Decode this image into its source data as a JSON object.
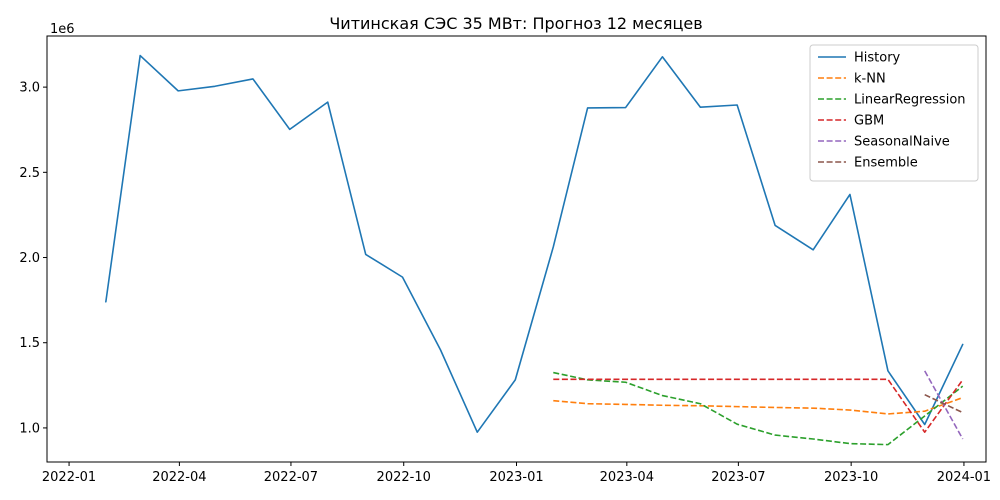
{
  "chart_data": {
    "type": "line",
    "title": "Читинская СЭС 35 МВт: Прогноз 12 месяцев",
    "xlabel": "",
    "ylabel": "",
    "y_offset_label": "1e6",
    "x_ticks": [
      {
        "date": "2022-01-01",
        "label": "2022-01"
      },
      {
        "date": "2022-04-01",
        "label": "2022-04"
      },
      {
        "date": "2022-07-01",
        "label": "2022-07"
      },
      {
        "date": "2022-10-01",
        "label": "2022-10"
      },
      {
        "date": "2023-01-01",
        "label": "2023-01"
      },
      {
        "date": "2023-04-01",
        "label": "2023-04"
      },
      {
        "date": "2023-07-01",
        "label": "2023-07"
      },
      {
        "date": "2023-10-01",
        "label": "2023-10"
      },
      {
        "date": "2024-01-01",
        "label": "2024-01"
      }
    ],
    "y_ticks": [
      {
        "value": 1000000,
        "label": "1.0"
      },
      {
        "value": 1500000,
        "label": "1.5"
      },
      {
        "value": 2000000,
        "label": "2.0"
      },
      {
        "value": 2500000,
        "label": "2.5"
      },
      {
        "value": 3000000,
        "label": "3.0"
      }
    ],
    "xlim": [
      "2021-12-14",
      "2024-01-19"
    ],
    "ylim": [
      800000,
      3300000
    ],
    "grid": false,
    "legend_position": "top-right",
    "series": [
      {
        "name": "History",
        "color": "#1f77b4",
        "dash": "solid",
        "points": [
          [
            "2022-01-31",
            1740000
          ],
          [
            "2022-02-28",
            3185000
          ],
          [
            "2022-03-31",
            2978000
          ],
          [
            "2022-04-30",
            3005000
          ],
          [
            "2022-05-31",
            3048000
          ],
          [
            "2022-06-30",
            2752000
          ],
          [
            "2022-07-31",
            2912000
          ],
          [
            "2022-08-31",
            2018000
          ],
          [
            "2022-09-30",
            1885000
          ],
          [
            "2022-10-31",
            1458000
          ],
          [
            "2022-11-30",
            975000
          ],
          [
            "2022-12-31",
            1282000
          ],
          [
            "2023-01-31",
            2062000
          ],
          [
            "2023-02-28",
            2878000
          ],
          [
            "2023-03-31",
            2880000
          ],
          [
            "2023-04-30",
            3178000
          ],
          [
            "2023-05-31",
            2882000
          ],
          [
            "2023-06-30",
            2895000
          ],
          [
            "2023-07-31",
            2188000
          ],
          [
            "2023-08-31",
            2045000
          ],
          [
            "2023-09-30",
            2370000
          ],
          [
            "2023-10-31",
            1335000
          ],
          [
            "2023-11-30",
            1020000
          ],
          [
            "2023-12-31",
            1490000
          ]
        ]
      },
      {
        "name": "k-NN",
        "color": "#ff7f0e",
        "dash": "dashed",
        "points": [
          [
            "2023-01-31",
            1160000
          ],
          [
            "2023-02-28",
            1142000
          ],
          [
            "2023-03-31",
            1138000
          ],
          [
            "2023-04-30",
            1133000
          ],
          [
            "2023-05-31",
            1130000
          ],
          [
            "2023-06-30",
            1125000
          ],
          [
            "2023-07-31",
            1120000
          ],
          [
            "2023-08-31",
            1116000
          ],
          [
            "2023-09-30",
            1105000
          ],
          [
            "2023-10-31",
            1082000
          ],
          [
            "2023-11-30",
            1098000
          ],
          [
            "2023-12-31",
            1178000
          ]
        ]
      },
      {
        "name": "LinearRegression",
        "color": "#2ca02c",
        "dash": "dashed",
        "points": [
          [
            "2023-01-31",
            1325000
          ],
          [
            "2023-02-28",
            1282000
          ],
          [
            "2023-03-31",
            1268000
          ],
          [
            "2023-04-30",
            1190000
          ],
          [
            "2023-05-31",
            1142000
          ],
          [
            "2023-06-30",
            1022000
          ],
          [
            "2023-07-31",
            958000
          ],
          [
            "2023-08-31",
            935000
          ],
          [
            "2023-09-30",
            908000
          ],
          [
            "2023-10-31",
            902000
          ],
          [
            "2023-11-30",
            1070000
          ],
          [
            "2023-12-31",
            1245000
          ]
        ]
      },
      {
        "name": "GBM",
        "color": "#d62728",
        "dash": "dashed",
        "points": [
          [
            "2023-01-31",
            1285000
          ],
          [
            "2023-02-28",
            1285000
          ],
          [
            "2023-03-31",
            1285000
          ],
          [
            "2023-04-30",
            1285000
          ],
          [
            "2023-05-31",
            1285000
          ],
          [
            "2023-06-30",
            1285000
          ],
          [
            "2023-07-31",
            1285000
          ],
          [
            "2023-08-31",
            1285000
          ],
          [
            "2023-09-30",
            1285000
          ],
          [
            "2023-10-31",
            1285000
          ],
          [
            "2023-11-30",
            975000
          ],
          [
            "2023-12-31",
            1282000
          ]
        ]
      },
      {
        "name": "SeasonalNaive",
        "color": "#9467bd",
        "dash": "dashed",
        "points": [
          [
            "2023-11-30",
            1335000
          ],
          [
            "2023-12-31",
            935000
          ]
        ]
      },
      {
        "name": "Ensemble",
        "color": "#8c564b",
        "dash": "dashed",
        "points": [
          [
            "2023-11-30",
            1195000
          ],
          [
            "2023-12-31",
            1090000
          ]
        ]
      }
    ]
  }
}
